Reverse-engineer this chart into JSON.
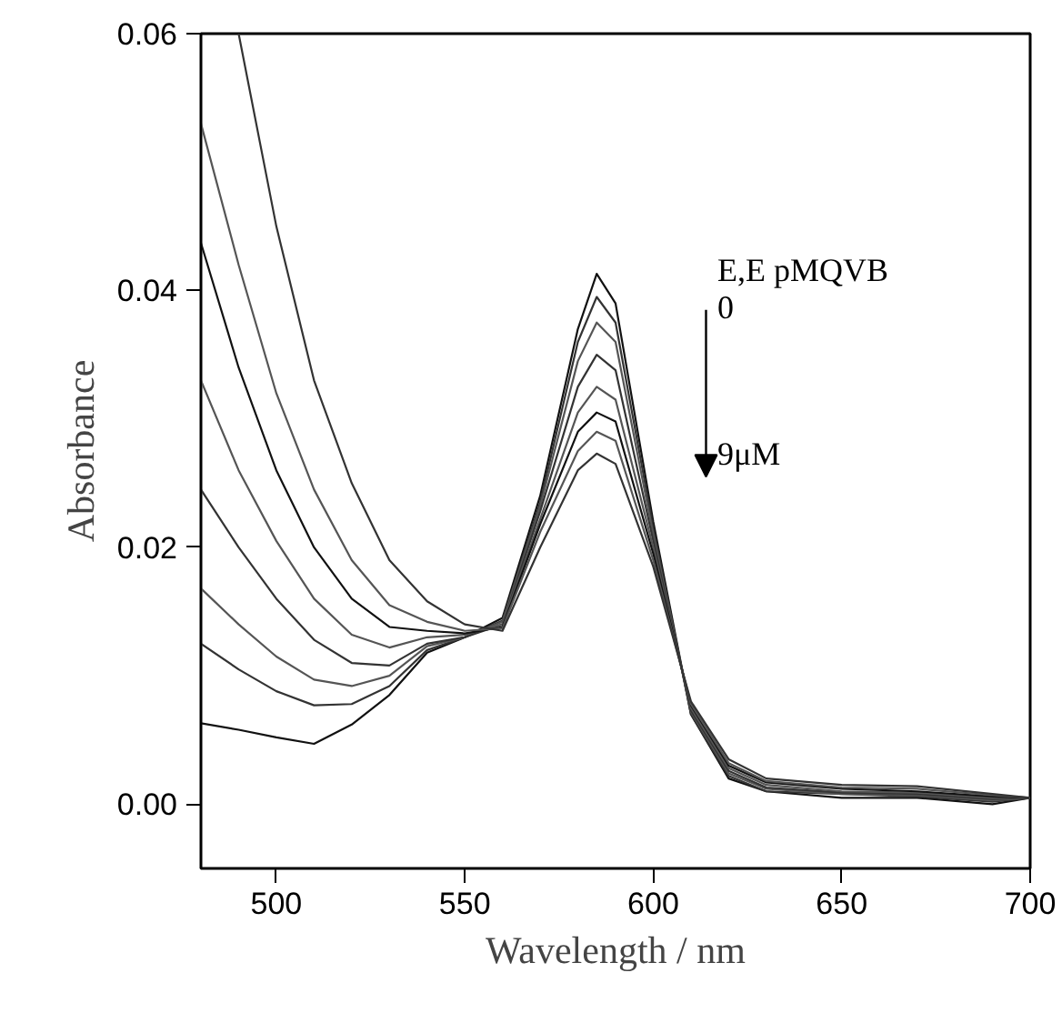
{
  "chart_data": {
    "type": "line",
    "xlabel": "Wavelength / nm",
    "ylabel": "Absorbance",
    "x": [
      480,
      490,
      500,
      510,
      520,
      530,
      540,
      550,
      560,
      570,
      580,
      585,
      590,
      600,
      610,
      620,
      630,
      650,
      670,
      690,
      700
    ],
    "xlim": [
      480,
      700
    ],
    "xticks": [
      500,
      550,
      600,
      650,
      700
    ],
    "ylim": [
      -0.005,
      0.06
    ],
    "yticks": [
      {
        "value": 0,
        "label": "0.00"
      },
      {
        "value": 0.02,
        "label": "0.02"
      },
      {
        "value": 0.04,
        "label": "0.04"
      },
      {
        "value": 0.06,
        "label": "0.06"
      }
    ],
    "grid": false,
    "marker": "none",
    "line_style": "solid",
    "annotations": [
      "E,E pMQVB",
      "0",
      "9μM"
    ],
    "series": [
      {
        "color": "#111111",
        "values": [
          0.0063,
          0.0058,
          0.0052,
          0.0047,
          0.0062,
          0.0085,
          0.0118,
          0.013,
          0.0145,
          0.024,
          0.037,
          0.0413,
          0.039,
          0.022,
          0.007,
          0.002,
          0.001,
          0.0005,
          0.0005,
          0.0,
          0.0005
        ]
      },
      {
        "color": "#333333",
        "values": [
          0.0125,
          0.0105,
          0.0088,
          0.0077,
          0.0078,
          0.0092,
          0.012,
          0.013,
          0.0143,
          0.0235,
          0.036,
          0.0395,
          0.0375,
          0.0215,
          0.007,
          0.0022,
          0.001,
          0.0008,
          0.0006,
          0.0002,
          0.0005
        ]
      },
      {
        "color": "#555555",
        "values": [
          0.0168,
          0.014,
          0.0115,
          0.0097,
          0.0092,
          0.01,
          0.0123,
          0.013,
          0.0142,
          0.0232,
          0.0345,
          0.0375,
          0.036,
          0.021,
          0.0072,
          0.0024,
          0.0012,
          0.0008,
          0.0007,
          0.0003,
          0.0005
        ]
      },
      {
        "color": "#333333",
        "values": [
          0.0245,
          0.02,
          0.016,
          0.0128,
          0.011,
          0.0108,
          0.0125,
          0.013,
          0.014,
          0.0228,
          0.0325,
          0.035,
          0.0338,
          0.0205,
          0.0073,
          0.0026,
          0.0013,
          0.0009,
          0.0008,
          0.0004,
          0.0005
        ]
      },
      {
        "color": "#555555",
        "values": [
          0.033,
          0.026,
          0.0205,
          0.016,
          0.0132,
          0.0122,
          0.013,
          0.0132,
          0.014,
          0.0222,
          0.0305,
          0.0325,
          0.0315,
          0.02,
          0.0075,
          0.0028,
          0.0015,
          0.001,
          0.0009,
          0.0005,
          0.0005
        ]
      },
      {
        "color": "#111111",
        "values": [
          0.0437,
          0.034,
          0.026,
          0.02,
          0.016,
          0.0138,
          0.0135,
          0.0133,
          0.0138,
          0.0218,
          0.029,
          0.0305,
          0.0298,
          0.0195,
          0.0077,
          0.003,
          0.0017,
          0.0012,
          0.001,
          0.0006,
          0.0005
        ]
      },
      {
        "color": "#555555",
        "values": [
          0.053,
          0.042,
          0.032,
          0.0245,
          0.019,
          0.0155,
          0.0142,
          0.0135,
          0.0137,
          0.0212,
          0.0275,
          0.029,
          0.0283,
          0.019,
          0.0078,
          0.0032,
          0.0018,
          0.0013,
          0.0012,
          0.0007,
          0.0005
        ]
      },
      {
        "color": "#333333",
        "values": [
          null,
          0.06,
          0.045,
          0.033,
          0.025,
          0.019,
          0.0158,
          0.014,
          0.0135,
          0.02,
          0.026,
          0.0273,
          0.0265,
          0.0185,
          0.008,
          0.0035,
          0.002,
          0.0015,
          0.0014,
          0.0008,
          0.0005
        ]
      }
    ]
  }
}
